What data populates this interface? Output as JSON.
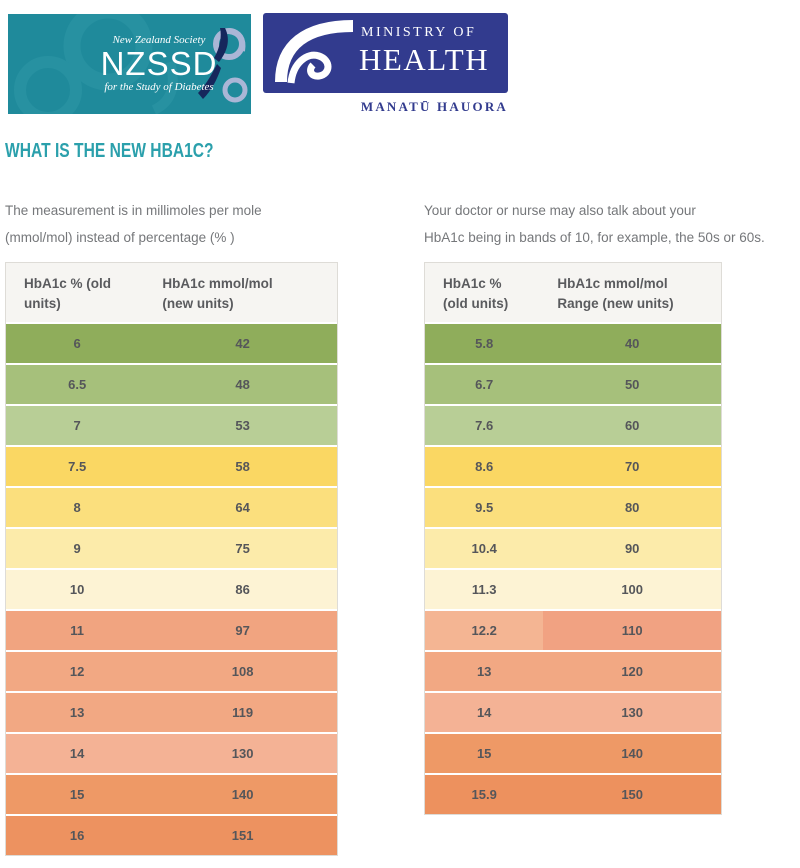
{
  "logos": {
    "nzssd": {
      "society_line": "New Zealand Society",
      "acronym": "NZSSD",
      "tagline": "for the Study of Diabetes",
      "bg_color": "#1f8a9b",
      "map_color": "#16275c",
      "koru_color": "#aab6d6"
    },
    "moh": {
      "ministry_of": "MINISTRY OF",
      "health": "HEALTH",
      "maori_name": "MANATŪ HAUORA",
      "bg_color": "#323b8e"
    }
  },
  "heading": {
    "text": "WHAT IS THE NEW HBA1C?",
    "color": "#2ba0ac"
  },
  "intro_left": {
    "line1": "The measurement is in millimoles per mole",
    "line2": "(mmol/mol) instead of percentage (% )"
  },
  "intro_right": {
    "line1": "Your doctor or nurse may also talk about your",
    "line2": "HbA1c being in bands of 10, for example, the 50s or 60s."
  },
  "left_table": {
    "header": {
      "col1_line1": "HbA1c % (old",
      "col1_line2": "units)",
      "col2_line1": "HbA1c mmol/mol",
      "col2_line2": "(new units)"
    },
    "rows": [
      {
        "old": "6",
        "new": "42",
        "color": "#8fad5b"
      },
      {
        "old": "6.5",
        "new": "48",
        "color": "#a6c07b"
      },
      {
        "old": "7",
        "new": "53",
        "color": "#b8ce96"
      },
      {
        "old": "7.5",
        "new": "58",
        "color": "#fad763"
      },
      {
        "old": "8",
        "new": "64",
        "color": "#fbdf7d"
      },
      {
        "old": "9",
        "new": "75",
        "color": "#fcebaa"
      },
      {
        "old": "10",
        "new": "86",
        "color": "#fdf3d4"
      },
      {
        "old": "11",
        "new": "97",
        "color": "#f1a480"
      },
      {
        "old": "12",
        "new": "108",
        "color": "#f2a883"
      },
      {
        "old": "13",
        "new": "119",
        "color": "#f2a883"
      },
      {
        "old": "14",
        "new": "130",
        "color": "#f4b295"
      },
      {
        "old": "15",
        "new": "140",
        "color": "#ee9966"
      },
      {
        "old": "16",
        "new": "151",
        "color": "#ed9260"
      }
    ]
  },
  "right_table": {
    "header": {
      "col1_line1": "HbA1c %",
      "col1_line2": "(old units)",
      "col2_line1": "HbA1c mmol/mol",
      "col2_line2": "Range (new units)"
    },
    "rows": [
      {
        "old": "5.8",
        "new": "40",
        "color": "#8fad5b"
      },
      {
        "old": "6.7",
        "new": "50",
        "color": "#a6c07b"
      },
      {
        "old": "7.6",
        "new": "60",
        "color": "#b8ce96"
      },
      {
        "old": "8.6",
        "new": "70",
        "color": "#fad763"
      },
      {
        "old": "9.5",
        "new": "80",
        "color": "#fbdf7d"
      },
      {
        "old": "10.4",
        "new": "90",
        "color": "#fcebaa"
      },
      {
        "old": "11.3",
        "new": "100",
        "color": "#fdf3d4"
      },
      {
        "old": "12.2",
        "new": "110",
        "color": "#f4b593",
        "color2": "#f1a282"
      },
      {
        "old": "13",
        "new": "120",
        "color": "#f2a883"
      },
      {
        "old": "14",
        "new": "130",
        "color": "#f4b295"
      },
      {
        "old": "15",
        "new": "140",
        "color": "#ee9966"
      },
      {
        "old": "15.9",
        "new": "150",
        "color": "#ed915e"
      }
    ]
  }
}
